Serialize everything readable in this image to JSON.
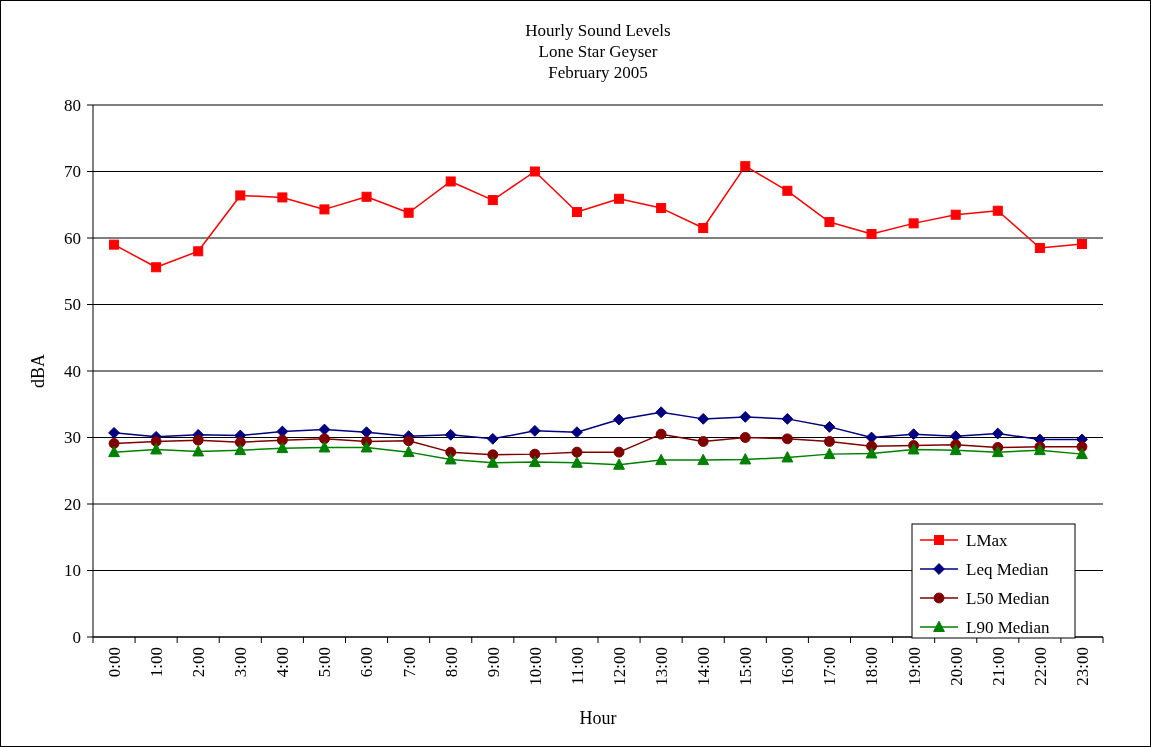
{
  "chart_data": {
    "type": "line",
    "title": "Hourly Sound Levels\nLone Star Geyser\nFebruary 2005",
    "xlabel": "Hour",
    "ylabel": "dBA",
    "categories": [
      "0:00",
      "1:00",
      "2:00",
      "3:00",
      "4:00",
      "5:00",
      "6:00",
      "7:00",
      "8:00",
      "9:00",
      "10:00",
      "11:00",
      "12:00",
      "13:00",
      "14:00",
      "15:00",
      "16:00",
      "17:00",
      "18:00",
      "19:00",
      "20:00",
      "21:00",
      "22:00",
      "23:00"
    ],
    "series": [
      {
        "name": "LMax",
        "color": "#ff0000",
        "marker": "square",
        "values": [
          59,
          55.6,
          58,
          66.4,
          66.1,
          64.3,
          66.2,
          63.8,
          68.5,
          65.7,
          70,
          63.9,
          65.9,
          64.5,
          61.5,
          70.8,
          67.1,
          62.4,
          60.6,
          62.2,
          63.5,
          64.1,
          58.5,
          59.1
        ]
      },
      {
        "name": "Leq Median",
        "color": "#000080",
        "marker": "diamond",
        "values": [
          30.7,
          30.1,
          30.4,
          30.3,
          30.9,
          31.2,
          30.8,
          30.2,
          30.4,
          29.8,
          31.0,
          30.8,
          32.7,
          33.8,
          32.8,
          33.1,
          32.8,
          31.6,
          30.0,
          30.5,
          30.2,
          30.6,
          29.7,
          29.7
        ]
      },
      {
        "name": "L50 Median",
        "color": "#800000",
        "marker": "circle",
        "values": [
          29.1,
          29.4,
          29.6,
          29.3,
          29.6,
          29.8,
          29.4,
          29.5,
          27.8,
          27.4,
          27.5,
          27.8,
          27.8,
          30.5,
          29.4,
          30.0,
          29.8,
          29.4,
          28.7,
          28.8,
          28.9,
          28.5,
          28.6,
          28.6
        ]
      },
      {
        "name": "L90 Median",
        "color": "#008000",
        "marker": "triangle",
        "values": [
          27.8,
          28.2,
          27.9,
          28.1,
          28.4,
          28.5,
          28.5,
          27.8,
          26.7,
          26.2,
          26.3,
          26.2,
          25.9,
          26.6,
          26.6,
          26.7,
          27.0,
          27.5,
          27.6,
          28.2,
          28.1,
          27.8,
          28.1,
          27.5
        ]
      }
    ],
    "ylim": [
      0,
      80
    ],
    "yticks": [
      0,
      10,
      20,
      30,
      40,
      50,
      60,
      70,
      80
    ],
    "grid": "y",
    "legend": "bottom right",
    "line_style": "solid"
  }
}
